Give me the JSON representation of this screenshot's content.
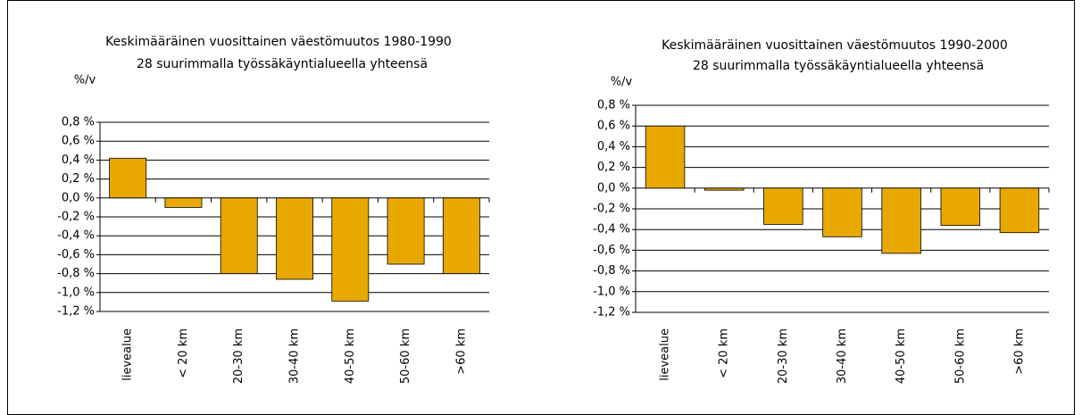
{
  "chart_data": [
    {
      "type": "bar",
      "title": "Keskimääräinen vuosittainen väestömuutos 1980-1990",
      "subtitle": "28 suurimmalla työssäkäyntialueella yhteensä",
      "y_label": "%/v",
      "categories": [
        "lievealue",
        "< 20 km",
        "20-30 km",
        "30-40 km",
        "40-50 km",
        "50-60 km",
        ">60 km"
      ],
      "values": [
        0.42,
        -0.1,
        -0.8,
        -0.86,
        -1.09,
        -0.7,
        -0.8
      ],
      "color": "#e8a800",
      "ylim": [
        -1.2,
        0.8
      ],
      "yticks": [
        {
          "value": -1.2,
          "label": "-1,2 %"
        },
        {
          "value": -1.0,
          "label": "-1,0 %"
        },
        {
          "value": -0.8,
          "label": "-0,8 %"
        },
        {
          "value": -0.6,
          "label": "-0,6 %"
        },
        {
          "value": -0.4,
          "label": "-0,4 %"
        },
        {
          "value": -0.2,
          "label": "-0,2 %"
        },
        {
          "value": 0,
          "label": "0,0 %"
        },
        {
          "value": 0.2,
          "label": "0,2 %"
        },
        {
          "value": 0.4,
          "label": "0,4 %"
        },
        {
          "value": 0.6,
          "label": "0,6 %"
        },
        {
          "value": 0.8,
          "label": "0,8 %"
        }
      ],
      "grid": true
    },
    {
      "type": "bar",
      "title": "Keskimääräinen vuosittainen väestömuutos 1990-2000",
      "subtitle": "28 suurimmalla työssäkäyntialueella yhteensä",
      "y_label": "%/v",
      "categories": [
        "lievealue",
        "< 20 km",
        "20-30 km",
        "30-40 km",
        "40-50 km",
        "50-60 km",
        ">60 km"
      ],
      "values": [
        0.6,
        -0.02,
        -0.35,
        -0.47,
        -0.63,
        -0.36,
        -0.43
      ],
      "color": "#e8a800",
      "ylim": [
        -1.2,
        0.8
      ],
      "yticks": [
        {
          "value": -1.2,
          "label": "-1,2 %"
        },
        {
          "value": -1.0,
          "label": "-1,0 %"
        },
        {
          "value": -0.8,
          "label": "-0,8 %"
        },
        {
          "value": -0.6,
          "label": "-0,6 %"
        },
        {
          "value": -0.4,
          "label": "-0,4 %"
        },
        {
          "value": -0.2,
          "label": "-0,2 %"
        },
        {
          "value": 0,
          "label": "0,0 %"
        },
        {
          "value": 0.2,
          "label": "0,2 %"
        },
        {
          "value": 0.4,
          "label": "0,4 %"
        },
        {
          "value": 0.6,
          "label": "0,6 %"
        },
        {
          "value": 0.8,
          "label": "0,8 %"
        }
      ],
      "grid": true
    }
  ]
}
